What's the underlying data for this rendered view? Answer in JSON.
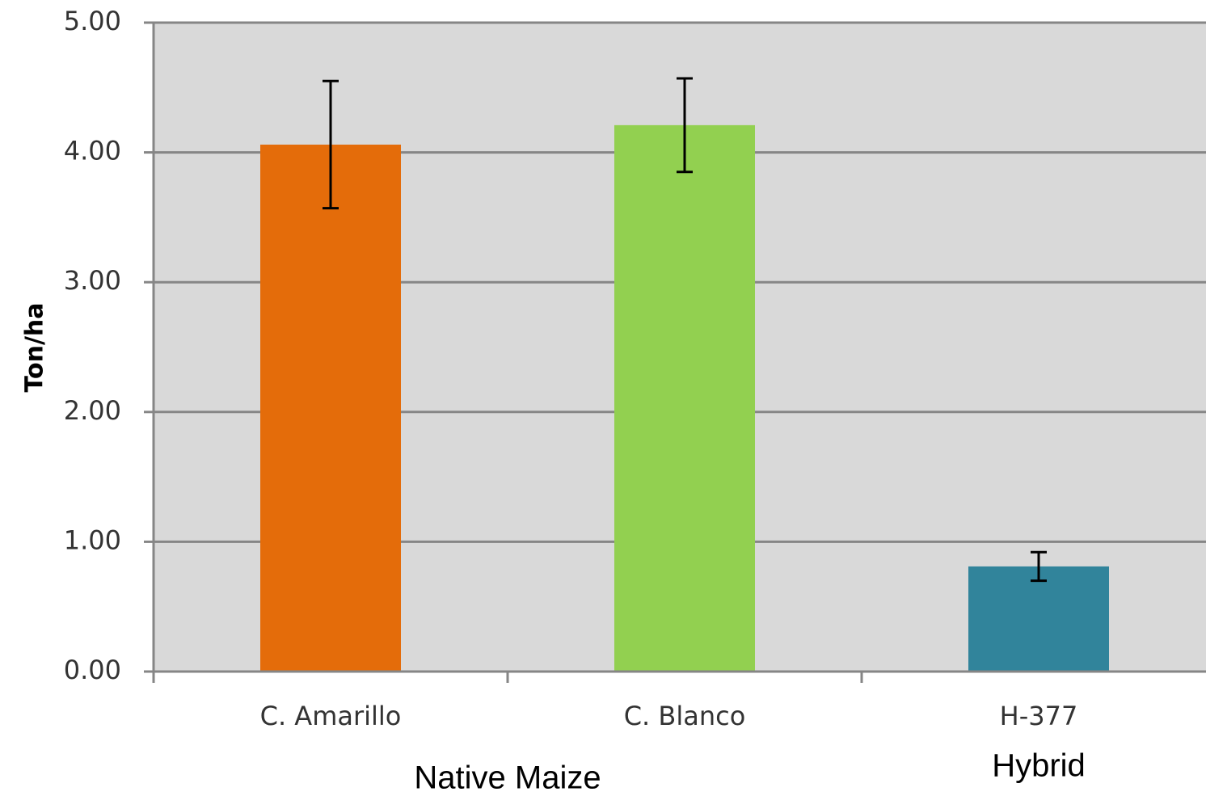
{
  "chart_data": {
    "type": "bar",
    "ylabel": "Ton/ha",
    "ylim": [
      0,
      5
    ],
    "yticks": [
      "0.00",
      "1.00",
      "2.00",
      "3.00",
      "4.00",
      "5.00"
    ],
    "categories": [
      "C. Amarillo",
      "C. Blanco",
      "H-377"
    ],
    "values": [
      4.06,
      4.21,
      0.81
    ],
    "error": [
      0.49,
      0.36,
      0.11
    ],
    "colors": [
      "#E46C0A",
      "#92D050",
      "#31849B"
    ],
    "groups": [
      {
        "label": "Native Maize",
        "categories": [
          "C. Amarillo",
          "C. Blanco"
        ]
      },
      {
        "label": "Hybrid",
        "categories": [
          "H-377"
        ]
      }
    ],
    "grid": true,
    "plot_background": "#D9D9D9"
  }
}
